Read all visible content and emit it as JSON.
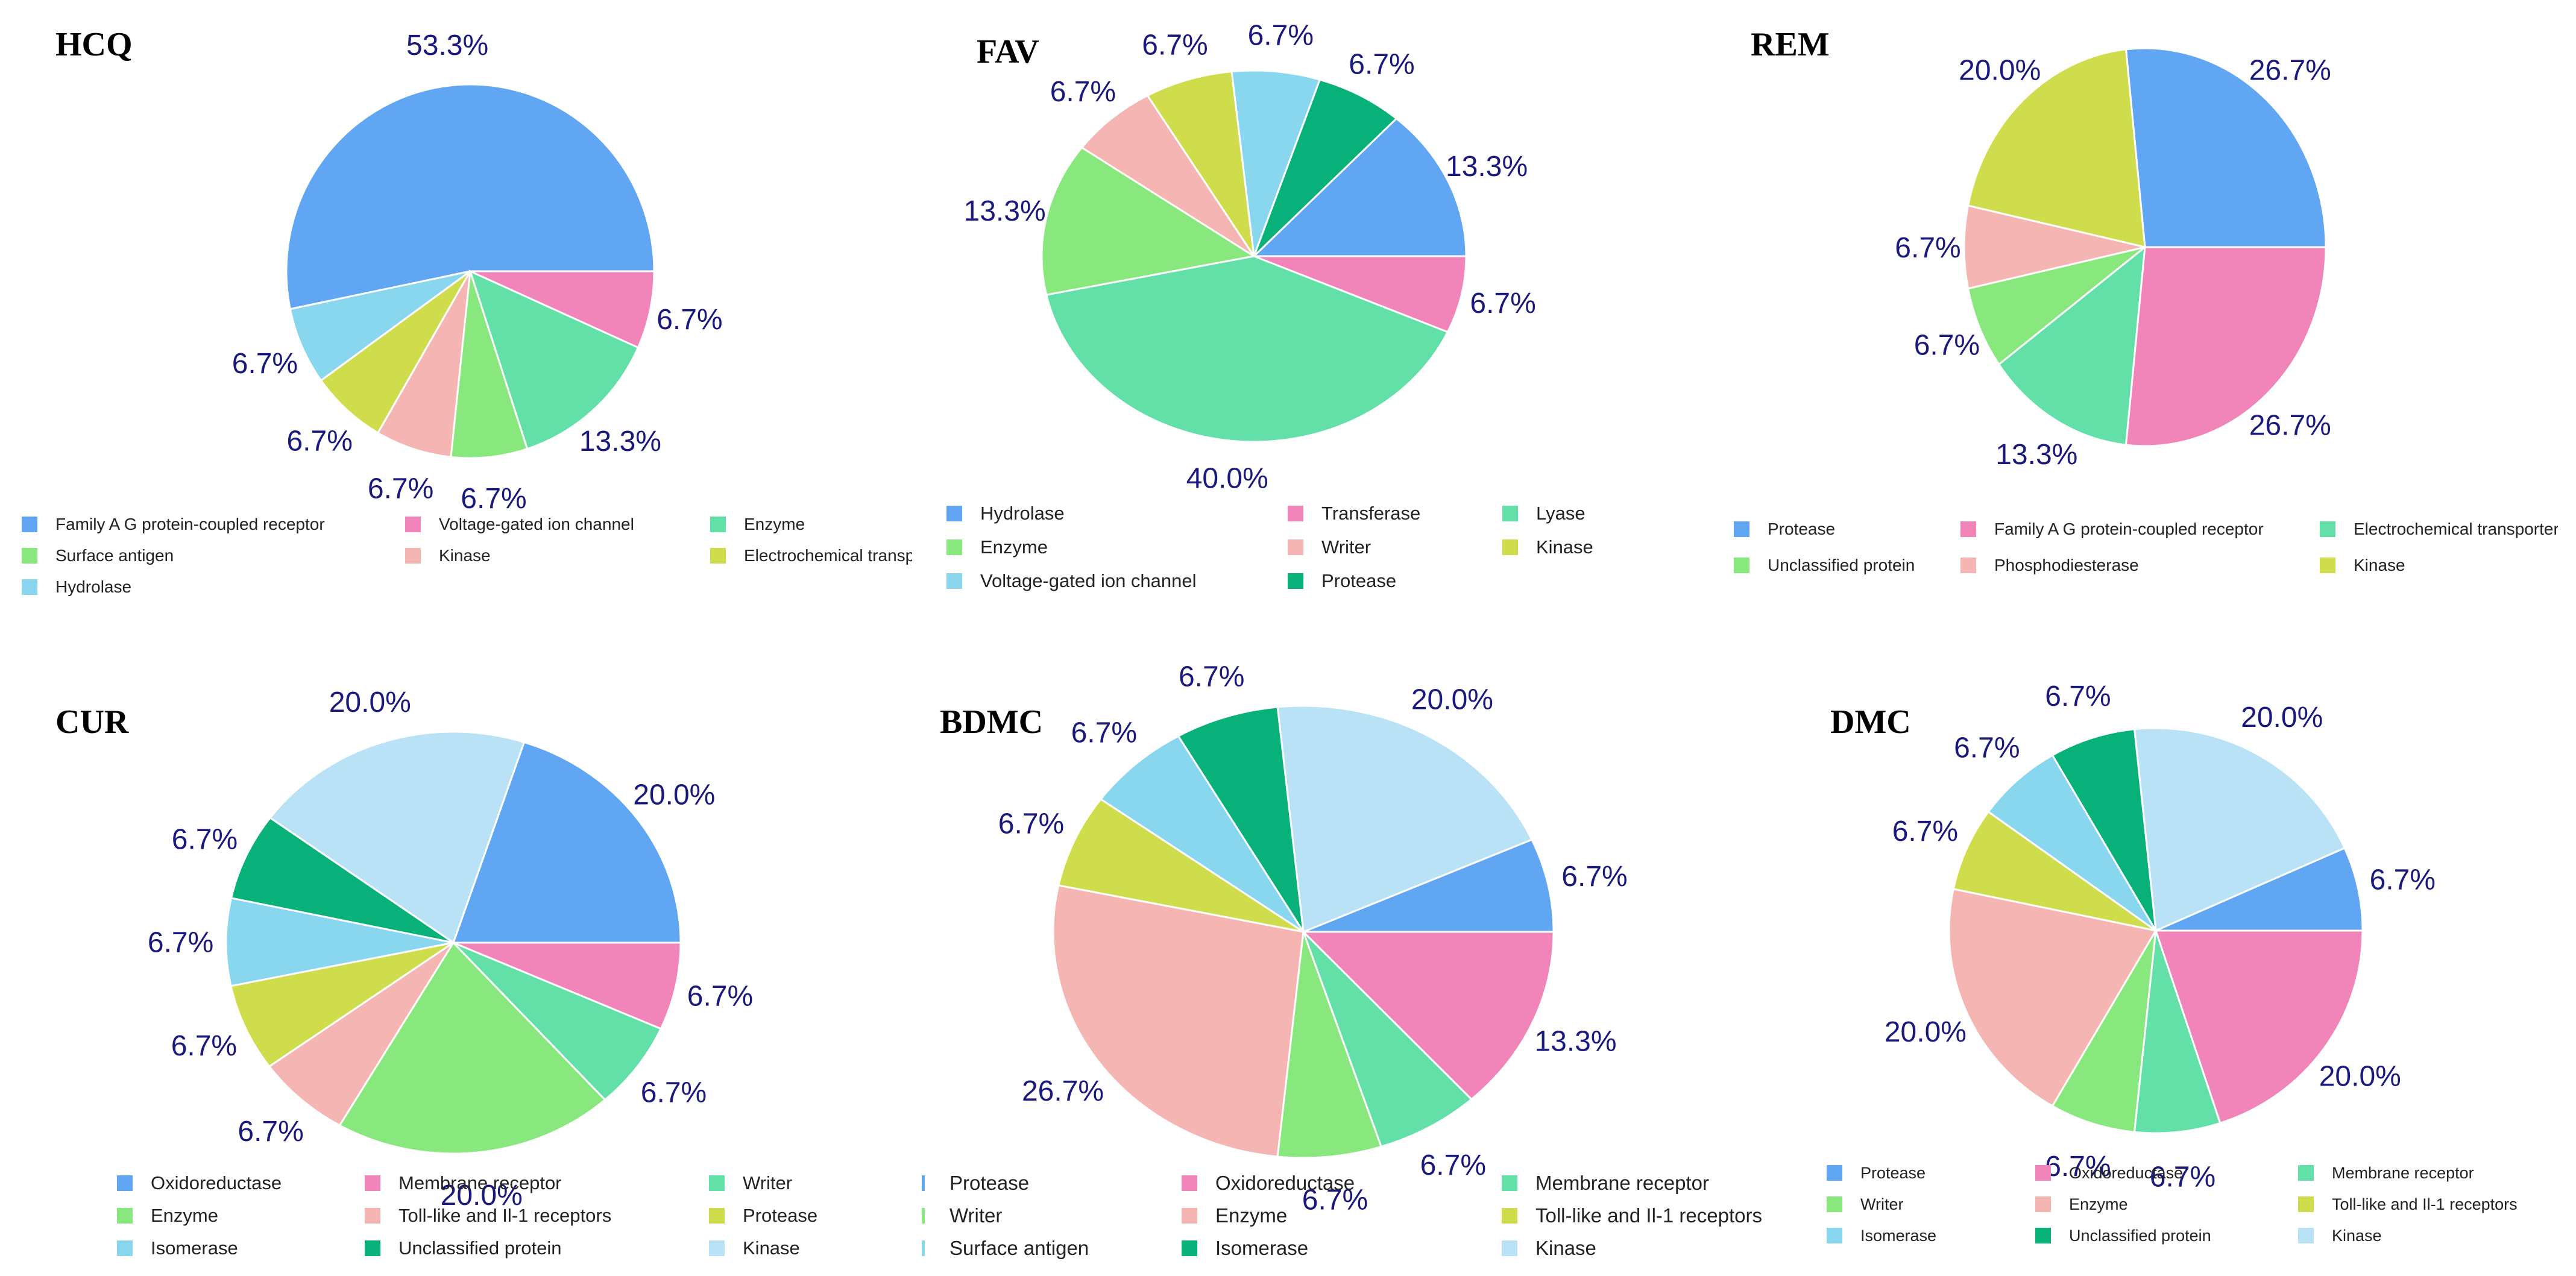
{
  "chart_data": [
    {
      "type": "pie",
      "title": "HCQ",
      "values": [
        53.3,
        6.7,
        6.7,
        6.7,
        6.7,
        13.3,
        6.7
      ],
      "slices": [
        {
          "label": "Family A G protein-coupled receptor",
          "pct": "53.3%",
          "color": "#60a6f2"
        },
        {
          "label": "Hydrolase",
          "pct": "6.7%",
          "color": "#89d6ef"
        },
        {
          "label": "Electrochemical transp",
          "pct": "6.7%",
          "color": "#cfdd4c"
        },
        {
          "label": "Kinase",
          "pct": "6.7%",
          "color": "#f5b5b3"
        },
        {
          "label": "Surface antigen",
          "pct": "6.7%",
          "color": "#88e87e"
        },
        {
          "label": "Enzyme",
          "pct": "13.3%",
          "color": "#62e0a8"
        },
        {
          "label": "Voltage-gated ion channel",
          "pct": "6.7%",
          "color": "#f184b8"
        }
      ],
      "legend": [
        "Family A G protein-coupled receptor",
        "Voltage-gated ion channel",
        "Enzyme",
        "Surface antigen",
        "Kinase",
        "Electrochemical transp",
        "Hydrolase"
      ],
      "legend_colors": [
        "#60a6f2",
        "#f184b8",
        "#62e0a8",
        "#88e87e",
        "#f5b5b3",
        "#cfdd4c",
        "#89d6ef"
      ]
    },
    {
      "type": "pie",
      "title": "FAV",
      "values": [
        13.3,
        6.7,
        6.7,
        6.7,
        6.7,
        13.3,
        40.0,
        6.7
      ],
      "slices": [
        {
          "label": "Hydrolase",
          "pct": "13.3%",
          "color": "#60a6f2"
        },
        {
          "label": "Protease",
          "pct": "6.7%",
          "color": "#08b179"
        },
        {
          "label": "Voltage-gated ion channel",
          "pct": "6.7%",
          "color": "#89d6ef"
        },
        {
          "label": "Kinase",
          "pct": "6.7%",
          "color": "#cfdd4c"
        },
        {
          "label": "Writer",
          "pct": "6.7%",
          "color": "#f5b5b3"
        },
        {
          "label": "Enzyme",
          "pct": "13.3%",
          "color": "#88e87e"
        },
        {
          "label": "Lyase",
          "pct": "40.0%",
          "color": "#62e0a8"
        },
        {
          "label": "Transferase",
          "pct": "6.7%",
          "color": "#f184b8"
        }
      ],
      "legend": [
        "Hydrolase",
        "Transferase",
        "Lyase",
        "Enzyme",
        "Writer",
        "Kinase",
        "Voltage-gated ion channel",
        "Protease"
      ],
      "legend_colors": [
        "#60a6f2",
        "#f184b8",
        "#62e0a8",
        "#88e87e",
        "#f5b5b3",
        "#cfdd4c",
        "#89d6ef",
        "#08b179"
      ]
    },
    {
      "type": "pie",
      "title": "REM",
      "values": [
        26.7,
        20.0,
        6.7,
        6.7,
        13.3,
        26.7
      ],
      "slices": [
        {
          "label": "Protease",
          "pct": "26.7%",
          "color": "#60a6f2"
        },
        {
          "label": "Kinase",
          "pct": "20.0%",
          "color": "#cfdd4c"
        },
        {
          "label": "Phosphodiesterase",
          "pct": "6.7%",
          "color": "#f5b5b3"
        },
        {
          "label": "Unclassified protein",
          "pct": "6.7%",
          "color": "#88e87e"
        },
        {
          "label": "Electrochemical transporter",
          "pct": "13.3%",
          "color": "#62e0a8"
        },
        {
          "label": "Family A G protein-coupled receptor",
          "pct": "26.7%",
          "color": "#f184b8"
        }
      ],
      "legend": [
        "Protease",
        "Family A G protein-coupled receptor",
        "Electrochemical transporter",
        "Unclassified protein",
        "Phosphodiesterase",
        "Kinase"
      ],
      "legend_colors": [
        "#60a6f2",
        "#f184b8",
        "#62e0a8",
        "#88e87e",
        "#f5b5b3",
        "#cfdd4c"
      ]
    },
    {
      "type": "pie",
      "title": "CUR",
      "values": [
        20.0,
        20.0,
        6.7,
        6.7,
        6.7,
        6.7,
        20.0,
        6.7,
        6.7
      ],
      "slices": [
        {
          "label": "Oxidoreductase",
          "pct": "20.0%",
          "color": "#60a6f2"
        },
        {
          "label": "Kinase",
          "pct": "20.0%",
          "color": "#b9e2f7"
        },
        {
          "label": "Unclassified protein",
          "pct": "6.7%",
          "color": "#08b179"
        },
        {
          "label": "Isomerase",
          "pct": "6.7%",
          "color": "#89d6ef"
        },
        {
          "label": "Protease",
          "pct": "6.7%",
          "color": "#cfdd4c"
        },
        {
          "label": "Toll-like and Il-1 receptors",
          "pct": "6.7%",
          "color": "#f5b5b3"
        },
        {
          "label": "Enzyme",
          "pct": "20.0%",
          "color": "#88e87e"
        },
        {
          "label": "Writer",
          "pct": "6.7%",
          "color": "#62e0a8"
        },
        {
          "label": "Membrane receptor",
          "pct": "6.7%",
          "color": "#f184b8"
        }
      ],
      "legend": [
        "Oxidoreductase",
        "Membrane receptor",
        "Writer",
        "Enzyme",
        "Toll-like and Il-1 receptors",
        "Protease",
        "Isomerase",
        "Unclassified protein",
        "Kinase"
      ],
      "legend_colors": [
        "#60a6f2",
        "#f184b8",
        "#62e0a8",
        "#88e87e",
        "#f5b5b3",
        "#cfdd4c",
        "#89d6ef",
        "#08b179",
        "#b9e2f7"
      ]
    },
    {
      "type": "pie",
      "title": "BDMC",
      "values": [
        6.7,
        20.0,
        6.7,
        6.7,
        6.7,
        26.7,
        6.7,
        6.7,
        13.3
      ],
      "slices": [
        {
          "label": "Protease",
          "pct": "6.7%",
          "color": "#60a6f2"
        },
        {
          "label": "Kinase",
          "pct": "20.0%",
          "color": "#b9e2f7"
        },
        {
          "label": "Isomerase",
          "pct": "6.7%",
          "color": "#08b179"
        },
        {
          "label": "Surface antigen",
          "pct": "6.7%",
          "color": "#89d6ef"
        },
        {
          "label": "Toll-like and Il-1 receptors",
          "pct": "6.7%",
          "color": "#cfdd4c"
        },
        {
          "label": "Enzyme",
          "pct": "26.7%",
          "color": "#f5b5b3"
        },
        {
          "label": "Writer",
          "pct": "6.7%",
          "color": "#88e87e"
        },
        {
          "label": "Membrane receptor",
          "pct": "6.7%",
          "color": "#62e0a8"
        },
        {
          "label": "Oxidoreductase",
          "pct": "13.3%",
          "color": "#f184b8"
        }
      ],
      "legend": [
        "Protease",
        "Oxidoreductase",
        "Membrane receptor",
        "Writer",
        "Enzyme",
        "Toll-like and Il-1 receptors",
        "Surface antigen",
        "Isomerase",
        "Kinase"
      ],
      "legend_colors": [
        "#60a6f2",
        "#f184b8",
        "#62e0a8",
        "#88e87e",
        "#f5b5b3",
        "#cfdd4c",
        "#89d6ef",
        "#08b179",
        "#b9e2f7"
      ]
    },
    {
      "type": "pie",
      "title": "DMC",
      "values": [
        6.7,
        20.0,
        6.7,
        6.7,
        6.7,
        20.0,
        6.7,
        6.7,
        20.0
      ],
      "slices": [
        {
          "label": "Protease",
          "pct": "6.7%",
          "color": "#60a6f2"
        },
        {
          "label": "Kinase",
          "pct": "20.0%",
          "color": "#b9e2f7"
        },
        {
          "label": "Unclassified protein",
          "pct": "6.7%",
          "color": "#08b179"
        },
        {
          "label": "Isomerase",
          "pct": "6.7%",
          "color": "#89d6ef"
        },
        {
          "label": "Toll-like and Il-1 receptors",
          "pct": "6.7%",
          "color": "#cfdd4c"
        },
        {
          "label": "Enzyme",
          "pct": "20.0%",
          "color": "#f5b5b3"
        },
        {
          "label": "Writer",
          "pct": "6.7%",
          "color": "#88e87e"
        },
        {
          "label": "Membrane receptor",
          "pct": "6.7%",
          "color": "#62e0a8"
        },
        {
          "label": "Oxidoreductase",
          "pct": "20.0%",
          "color": "#f184b8"
        }
      ],
      "legend": [
        "Protease",
        "Oxidoreductase",
        "Membrane receptor",
        "Writer",
        "Enzyme",
        "Toll-like and Il-1 receptors",
        "Isomerase",
        "Unclassified protein",
        "Kinase"
      ],
      "legend_colors": [
        "#60a6f2",
        "#f184b8",
        "#62e0a8",
        "#88e87e",
        "#f5b5b3",
        "#cfdd4c",
        "#89d6ef",
        "#08b179",
        "#b9e2f7"
      ]
    }
  ]
}
